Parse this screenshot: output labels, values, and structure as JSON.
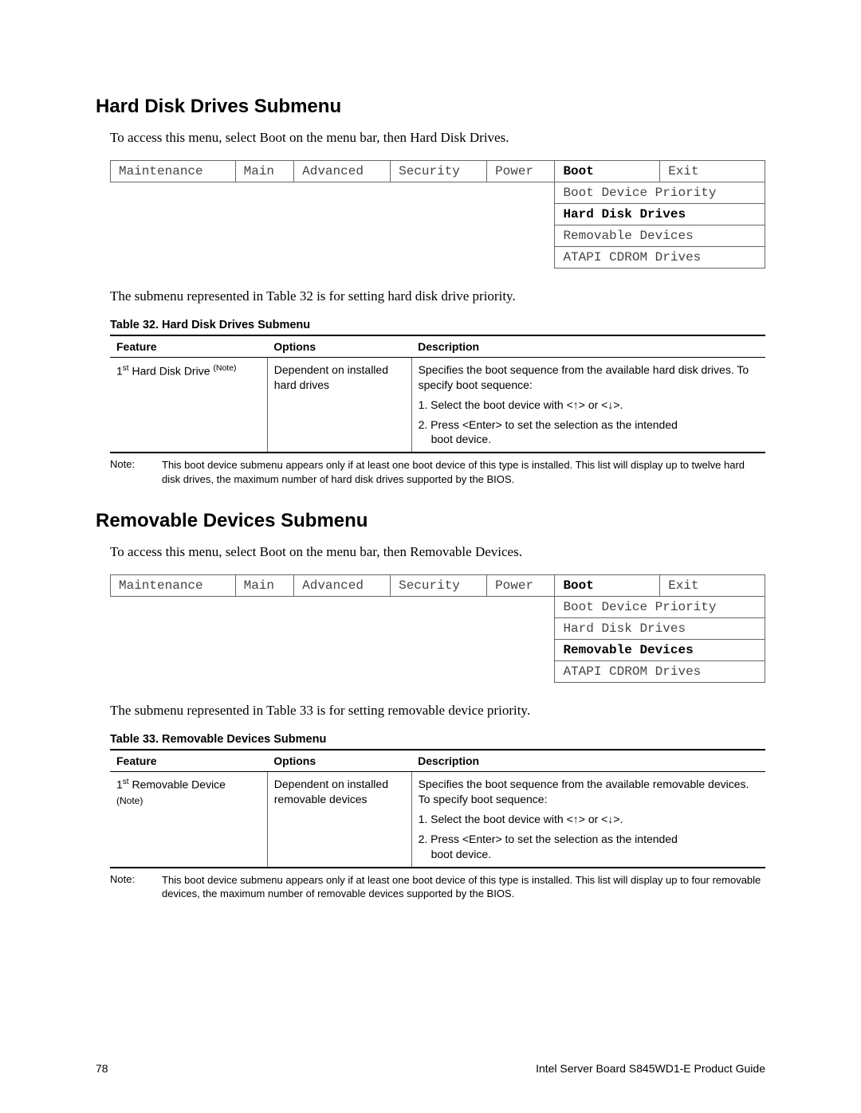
{
  "section1": {
    "heading": "Hard Disk Drives Submenu",
    "intro": "To access this menu, select Boot on the menu bar, then Hard Disk Drives.",
    "menu_tabs": [
      "Maintenance",
      "Main",
      "Advanced",
      "Security",
      "Power",
      "Boot",
      "Exit"
    ],
    "menu_bold_tab": "Boot",
    "submenu": [
      "Boot Device Priority",
      "Hard Disk Drives",
      "Removable Devices",
      "ATAPI CDROM Drives"
    ],
    "submenu_bold": "Hard Disk Drives",
    "post_menu": "The submenu represented in Table 32 is for setting hard disk drive priority.",
    "table_caption": "Table 32.    Hard Disk Drives Submenu",
    "table_headers": [
      "Feature",
      "Options",
      "Description"
    ],
    "feature_prefix": "1",
    "feature_sup": "st",
    "feature_rest": " Hard Disk Drive ",
    "feature_note": "(Note)",
    "options": "Dependent on installed hard drives",
    "desc1": "Specifies the boot sequence from the available hard disk drives.  To specify boot sequence:",
    "desc2": "1.  Select the boot device with <↑> or <↓>.",
    "desc3": "2.  Press <Enter> to set the selection as the intended",
    "desc3b": "boot device.",
    "note_label": "Note:",
    "note_text": "This boot device submenu appears only if at least one boot device of this type is installed.  This list will display up to twelve hard disk drives, the maximum number of hard disk drives supported by the BIOS."
  },
  "section2": {
    "heading": "Removable Devices Submenu",
    "intro": "To access this menu, select Boot on the menu bar, then Removable Devices.",
    "menu_tabs": [
      "Maintenance",
      "Main",
      "Advanced",
      "Security",
      "Power",
      "Boot",
      "Exit"
    ],
    "menu_bold_tab": "Boot",
    "submenu": [
      "Boot Device Priority",
      "Hard Disk Drives",
      "Removable Devices",
      "ATAPI CDROM Drives"
    ],
    "submenu_bold": "Removable Devices",
    "post_menu": "The submenu represented in Table 33 is for setting removable device priority.",
    "table_caption": "Table 33.    Removable Devices Submenu",
    "table_headers": [
      "Feature",
      "Options",
      "Description"
    ],
    "feature_prefix": "1",
    "feature_sup": "st",
    "feature_rest": " Removable Device",
    "feature_note": "(Note)",
    "options": "Dependent on installed removable devices",
    "desc1": "Specifies the boot sequence from the available removable devices.  To specify boot sequence:",
    "desc2": "1.  Select the boot device with <↑> or <↓>.",
    "desc3": "2.  Press <Enter> to set the selection as the intended",
    "desc3b": "boot device.",
    "note_label": "Note:",
    "note_text": "This boot device submenu appears only if at least one boot device of this type is installed.  This list will display up to four removable devices, the maximum number of removable devices supported by the BIOS."
  },
  "footer": {
    "page": "78",
    "title": "Intel Server Board S845WD1-E Product Guide"
  }
}
